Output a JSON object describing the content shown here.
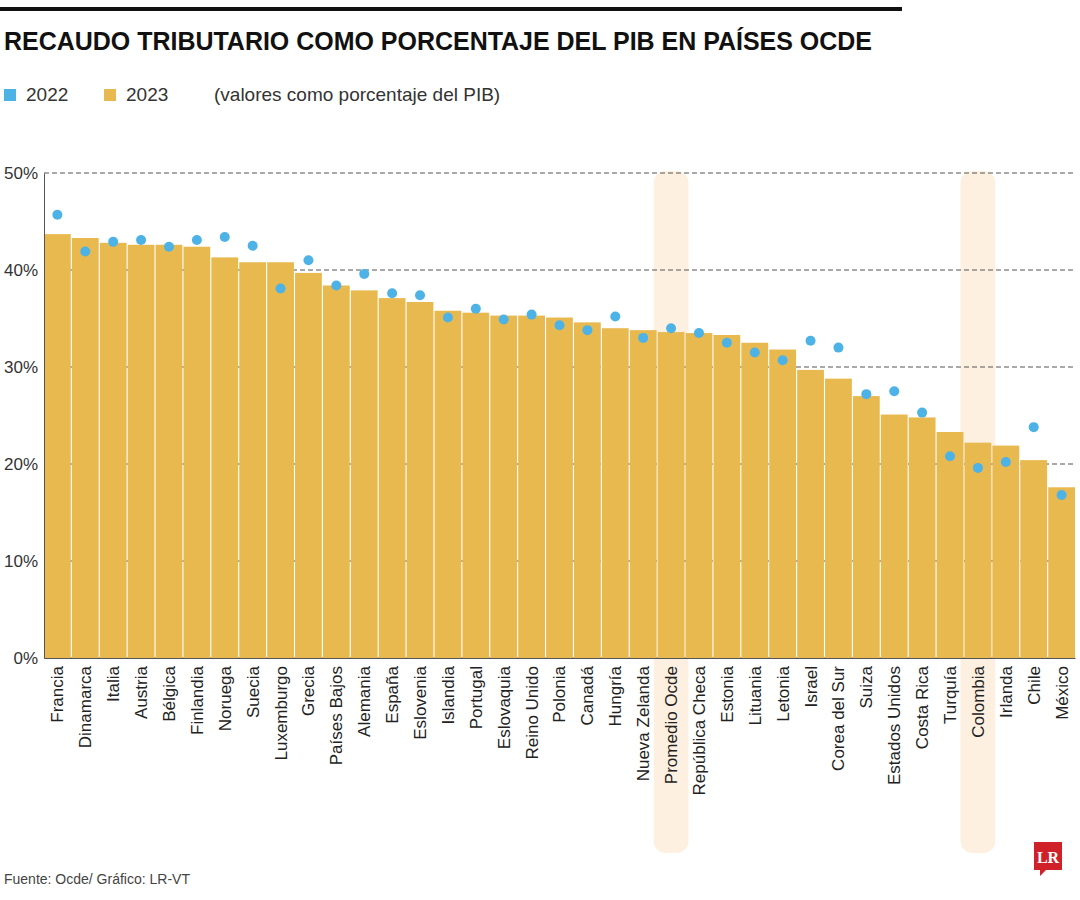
{
  "chart_data": {
    "type": "bar",
    "title": "RECAUDO TRIBUTARIO COMO PORCENTAJE DEL PIB EN PAÍSES OCDE",
    "subtitle": "(valores como porcentaje del PIB)",
    "source": "Fuente: Ocde/ Gráfico: LR-VT",
    "logo": "LR",
    "categories": [
      "Francia",
      "Dinamarca",
      "Italia",
      "Austria",
      "Bélgica",
      "Finlandia",
      "Noruega",
      "Suecia",
      "Luxemburgo",
      "Grecia",
      "Países Bajos",
      "Alemania",
      "España",
      "Eslovenia",
      "Islandia",
      "Portugal",
      "Eslovaquia",
      "Reino Unido",
      "Polonia",
      "Canadá",
      "Hungría",
      "Nueva Zelanda",
      "Promedio Ocde",
      "República Checa",
      "Estonia",
      "Lituania",
      "Letonia",
      "Israel",
      "Corea del Sur",
      "Suiza",
      "Estados Unidos",
      "Costa Rica",
      "Turquía",
      "Colombia",
      "Irlanda",
      "Chile",
      "México"
    ],
    "series": [
      {
        "name": "2022",
        "type": "scatter",
        "marker": "circle",
        "color": "#4db3e6",
        "values": [
          45.7,
          41.9,
          42.9,
          43.1,
          42.4,
          43.1,
          43.4,
          42.5,
          38.1,
          41.0,
          38.4,
          39.6,
          37.6,
          37.4,
          35.1,
          36.0,
          34.9,
          35.4,
          34.3,
          33.8,
          35.2,
          33.0,
          34.0,
          33.5,
          32.5,
          31.5,
          30.7,
          32.7,
          32.0,
          27.2,
          27.5,
          25.3,
          20.8,
          19.6,
          20.2,
          23.8,
          16.8
        ]
      },
      {
        "name": "2023",
        "type": "bar",
        "color": "#e8b94f",
        "values": [
          43.7,
          43.3,
          42.8,
          42.6,
          42.6,
          42.4,
          41.3,
          40.8,
          40.8,
          39.7,
          38.4,
          37.9,
          37.1,
          36.7,
          35.8,
          35.6,
          35.3,
          35.3,
          35.1,
          34.6,
          34.0,
          33.8,
          33.6,
          33.5,
          33.3,
          32.5,
          31.8,
          29.7,
          28.8,
          27.0,
          25.1,
          24.8,
          23.3,
          22.2,
          21.9,
          20.4,
          17.6
        ]
      }
    ],
    "ylim": [
      0,
      50
    ],
    "yticks": [
      {
        "value": 0,
        "label": "0%"
      },
      {
        "value": 10,
        "label": "10%"
      },
      {
        "value": 20,
        "label": "20%"
      },
      {
        "value": 30,
        "label": "30%"
      },
      {
        "value": 40,
        "label": "40%"
      },
      {
        "value": 50,
        "label": "50%"
      }
    ],
    "grid": true,
    "legend": "top-left"
  }
}
